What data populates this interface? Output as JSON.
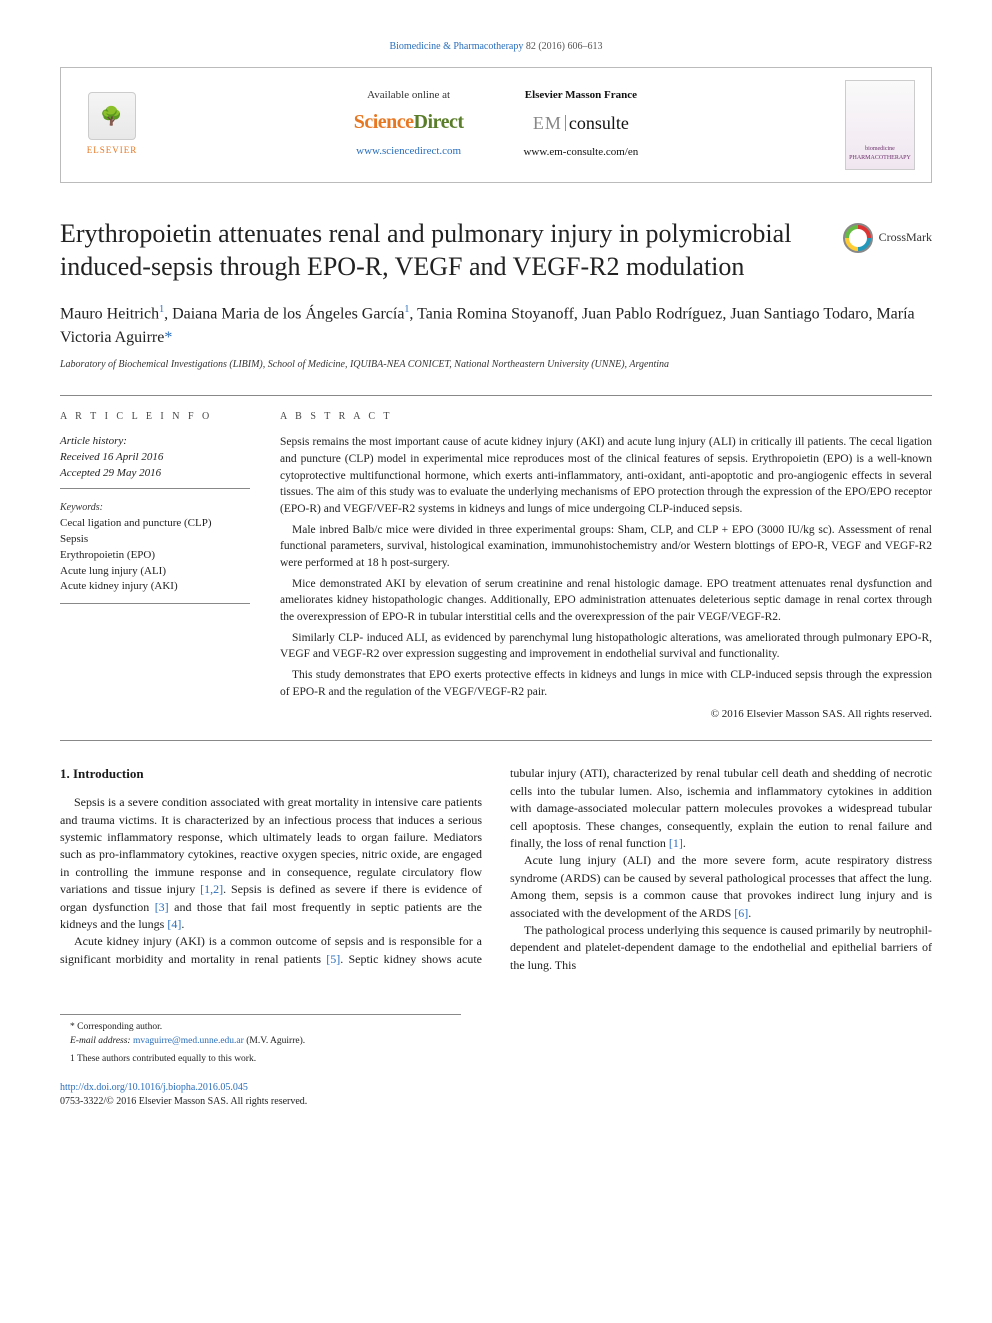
{
  "citation": {
    "journal_link": "Biomedicine & Pharmacotherapy",
    "vol_pages": " 82 (2016) 606–613"
  },
  "masthead": {
    "elsevier": "ELSEVIER",
    "available": "Available online at",
    "sciencedirect_sci": "Science",
    "sciencedirect_dir": "Direct",
    "sd_url": "www.sciencedirect.com",
    "emf_label": "Elsevier Masson France",
    "em": "EM",
    "consulte": "consulte",
    "em_url": "www.em-consulte.com/en",
    "cover_text": "biomedicine PHARMACOTHERAPY"
  },
  "title": "Erythropoietin attenuates renal and pulmonary injury in polymicrobial induced-sepsis through EPO-R, VEGF and VEGF-R2 modulation",
  "crossmark": "CrossMark",
  "authors_html": "Mauro Heitrich<sup>1</sup>, Daiana Maria de los Ángeles García<sup>1</sup>, Tania Romina Stoyanoff, Juan Pablo Rodríguez, Juan Santiago Todaro, María Victoria Aguirre<span class='star'>*</span>",
  "affiliation": "Laboratory of Biochemical Investigations (LIBIM), School of Medicine, IQUIBA-NEA CONICET, National Northeastern University (UNNE), Argentina",
  "info": {
    "heading": "A R T I C L E   I N F O",
    "history_label": "Article history:",
    "received": "Received 16 April 2016",
    "accepted": "Accepted 29 May 2016",
    "keywords_label": "Keywords:",
    "keywords": [
      "Cecal ligation and puncture (CLP)",
      "Sepsis",
      "Erythropoietin (EPO)",
      "Acute lung injury (ALI)",
      "Acute kidney injury (AKI)"
    ]
  },
  "abstract": {
    "heading": "A B S T R A C T",
    "p1": "Sepsis remains the most important cause of acute kidney injury (AKI) and acute lung injury (ALI) in critically ill patients. The cecal ligation and puncture (CLP) model in experimental mice reproduces most of the clinical features of sepsis. Erythropoietin (EPO) is a well-known cytoprotective multifunctional hormone, which exerts anti-inflammatory, anti-oxidant, anti-apoptotic and pro-angiogenic effects in several tissues. The aim of this study was to evaluate the underlying mechanisms of EPO protection through the expression of the EPO/EPO receptor (EPO-R) and VEGF/VEF-R2 systems in kidneys and lungs of mice undergoing CLP-induced sepsis.",
    "p2": "Male inbred Balb/c mice were divided in three experimental groups: Sham, CLP, and CLP + EPO (3000 IU/kg sc). Assessment of renal functional parameters, survival, histological examination, immunohistochemistry and/or Western blottings of EPO-R, VEGF and VEGF-R2 were performed at 18 h post-surgery.",
    "p3": "Mice demonstrated AKI by elevation of serum creatinine and renal histologic damage. EPO treatment attenuates renal dysfunction and ameliorates kidney histopathologic changes. Additionally, EPO administration attenuates deleterious septic damage in renal cortex through the overexpression of EPO-R in tubular interstitial cells and the overexpression of the pair VEGF/VEGF-R2.",
    "p4": "Similarly CLP- induced ALI, as evidenced by parenchymal lung histopathologic alterations, was ameliorated through pulmonary EPO-R, VEGF and VEGF-R2 over expression suggesting and improvement in endothelial survival and functionality.",
    "p5": "This study demonstrates that EPO exerts protective effects in kidneys and lungs in mice with CLP-induced sepsis through the expression of EPO-R and the regulation of the VEGF/VEGF-R2 pair.",
    "copyright": "© 2016 Elsevier Masson SAS. All rights reserved."
  },
  "intro": {
    "heading": "1. Introduction",
    "p1a": "Sepsis is a severe condition associated with great mortality in intensive care patients and trauma victims. It is characterized by an infectious process that induces a serious systemic inflammatory response, which ultimately leads to organ failure. Mediators such as pro-inflammatory cytokines, reactive oxygen species, nitric oxide, are engaged in controlling the immune response and in consequence, regulate circulatory flow variations and tissue injury ",
    "ref1": "[1,2]",
    "p1b": ". Sepsis is defined as severe if there is evidence of organ dysfunction ",
    "ref2": "[3]",
    "p1c": " and those that fail most frequently in septic patients are the kidneys and the lungs ",
    "ref3": "[4]",
    "p1d": ".",
    "p2a": "Acute kidney injury (AKI) is a common outcome of sepsis and is responsible for a significant morbidity and mortality in renal patients ",
    "ref4": "[5]",
    "p2b": ". Septic kidney shows acute tubular injury (ATI), characterized by renal tubular cell death and shedding of necrotic cells into the tubular lumen. Also, ischemia and inflammatory cytokines in addition with damage-associated molecular pattern molecules provokes a widespread tubular cell apoptosis. These changes, consequently, explain the eution to renal failure and finally, the loss of renal function ",
    "ref5": "[1]",
    "p2c": ".",
    "p3a": "Acute lung injury (ALI) and the more severe form, acute respiratory distress syndrome (ARDS) can be caused by several pathological processes that affect the lung. Among them, sepsis is a common cause that provokes indirect lung injury and is associated with the development of the ARDS ",
    "ref6": "[6]",
    "p3b": ".",
    "p4": "The pathological process underlying this sequence is caused primarily by neutrophil-dependent and platelet-dependent damage to the endothelial and epithelial barriers of the lung. This"
  },
  "footnotes": {
    "corr": "* Corresponding author.",
    "email_label": "E-mail address: ",
    "email": "mvaguirre@med.unne.edu.ar",
    "email_suffix": " (M.V. Aguirre).",
    "equal": "1 These authors contributed equally to this work."
  },
  "doi": {
    "url": "http://dx.doi.org/10.1016/j.biopha.2016.05.045",
    "issn_copy": "0753-3322/© 2016 Elsevier Masson SAS. All rights reserved."
  },
  "colors": {
    "link": "#2a6ebb",
    "orange": "#e87722",
    "green": "#5a7d2a"
  }
}
